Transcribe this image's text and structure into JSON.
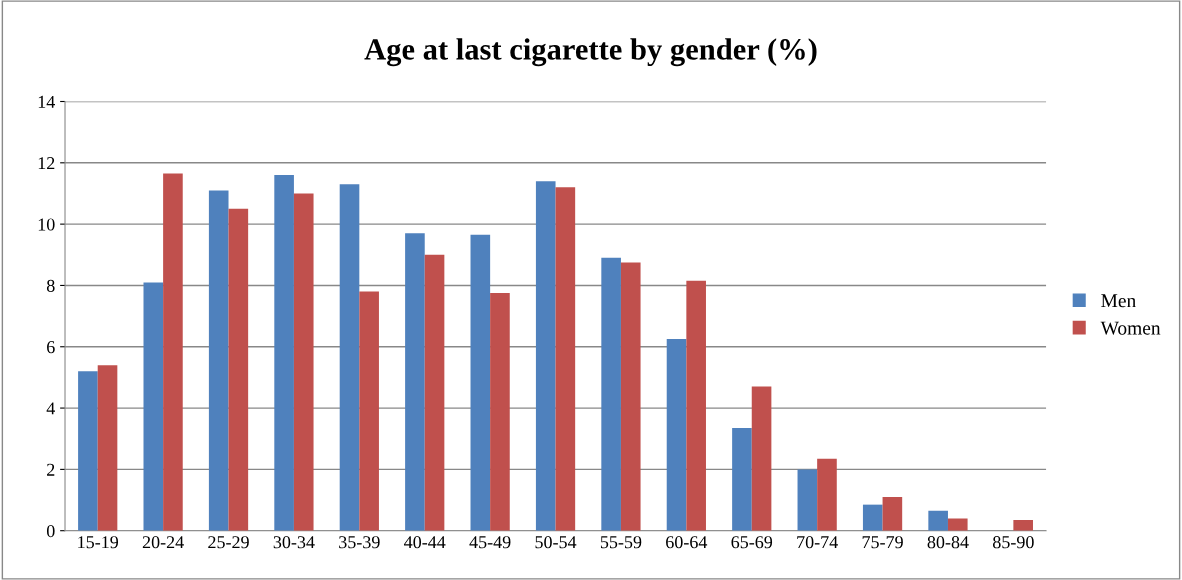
{
  "chart_data": {
    "type": "bar",
    "title": "Age at last cigarette by gender (%)",
    "categories": [
      "15-19",
      "20-24",
      "25-29",
      "30-34",
      "35-39",
      "40-44",
      "45-49",
      "50-54",
      "55-59",
      "60-64",
      "65-69",
      "70-74",
      "75-79",
      "80-84",
      "85-90"
    ],
    "series": [
      {
        "name": "Men",
        "color": "#4f81bd",
        "values": [
          5.2,
          8.1,
          11.1,
          11.6,
          11.3,
          9.7,
          9.65,
          11.4,
          8.9,
          6.25,
          3.35,
          2.0,
          0.85,
          0.65,
          0
        ]
      },
      {
        "name": "Women",
        "color": "#c0504d",
        "values": [
          5.4,
          11.65,
          10.5,
          11.0,
          7.8,
          9.0,
          7.75,
          11.2,
          8.75,
          8.15,
          4.7,
          2.35,
          1.1,
          0.4,
          0.35
        ]
      }
    ],
    "ylim": [
      0,
      14
    ],
    "yticks": [
      0,
      2,
      4,
      6,
      8,
      10,
      12,
      14
    ],
    "grid": "y",
    "legend": "right"
  }
}
